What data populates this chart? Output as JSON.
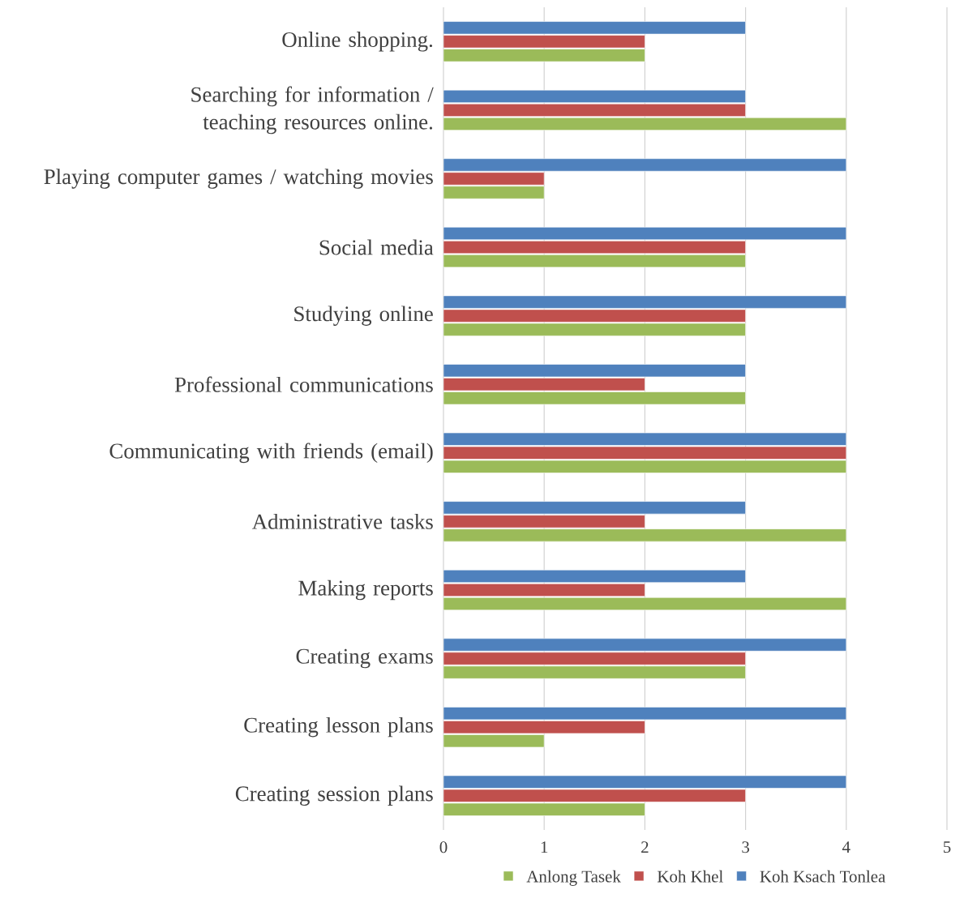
{
  "chart_data": {
    "type": "bar",
    "orientation": "horizontal",
    "categories": [
      "Online shopping.",
      "Searching for information / teaching resources online.",
      "Playing computer games / watching movies",
      "Social media",
      "Studying online",
      "Professional communications",
      "Communicating with friends (email)",
      "Administrative tasks",
      "Making reports",
      "Creating exams",
      "Creating lesson plans",
      "Creating session plans"
    ],
    "series": [
      {
        "name": "Anlong Tasek",
        "color": "#9bbb59",
        "values": [
          2,
          4,
          1,
          3,
          3,
          3,
          4,
          4,
          4,
          3,
          1,
          2
        ]
      },
      {
        "name": "Koh Khel",
        "color": "#c0504d",
        "values": [
          2,
          3,
          1,
          3,
          3,
          2,
          4,
          2,
          2,
          3,
          2,
          3
        ]
      },
      {
        "name": "Koh Ksach Tonlea",
        "color": "#4f81bd",
        "values": [
          3,
          3,
          4,
          4,
          4,
          3,
          4,
          3,
          3,
          4,
          4,
          4
        ]
      }
    ],
    "xlim": [
      0,
      5
    ],
    "xticks": [
      0,
      1,
      2,
      3,
      4,
      5
    ],
    "grid": "x",
    "legend": "bottom"
  }
}
